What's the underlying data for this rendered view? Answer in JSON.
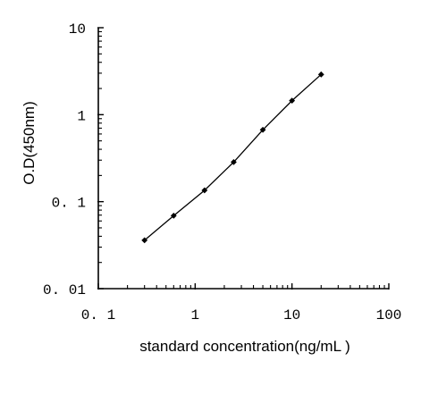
{
  "chart_data": {
    "type": "line",
    "xlabel": "standard concentration(ng/mL )",
    "ylabel": "O.D(450nm)",
    "x_scale": "log",
    "y_scale": "log",
    "xlim": [
      0.1,
      100
    ],
    "ylim": [
      0.01,
      10
    ],
    "x_tick_labels": [
      "0. 1",
      "1",
      "10",
      "100"
    ],
    "y_tick_labels": [
      "0. 01",
      "0. 1",
      "1",
      "10"
    ],
    "grid": false,
    "legend": "none",
    "marker": "diamond",
    "line_color": "#000000",
    "marker_color": "#000000",
    "series": [
      {
        "x": [
          0.3,
          0.6,
          1.25,
          2.5,
          5,
          10,
          20
        ],
        "y": [
          0.036,
          0.069,
          0.135,
          0.285,
          0.67,
          1.45,
          2.9
        ]
      }
    ]
  }
}
